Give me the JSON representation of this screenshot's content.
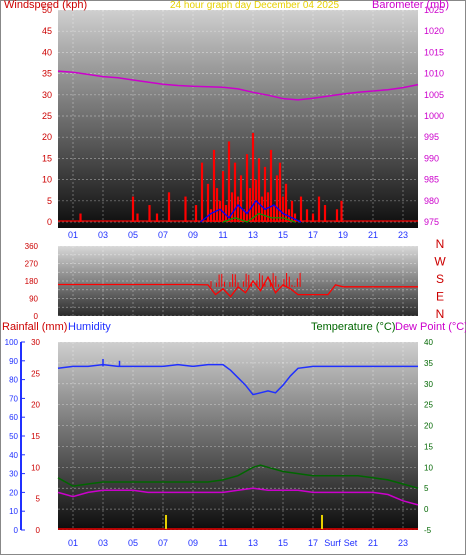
{
  "header": {
    "left_label": "Windspeed (kph)",
    "center_label": "24 hour graph day   December 04 2025",
    "right_label": "Barometer (mb)"
  },
  "colors": {
    "wind": "#ff0000",
    "gust_blue": "#0000ff",
    "gust_green": "#00a000",
    "barometer": "#cc00cc",
    "humidity": "#2030ff",
    "temperature": "#006600",
    "dewpoint": "#cc00cc",
    "rain": "#cc0000",
    "sun": "#e6d000",
    "axis_text": "#cc0000"
  },
  "x_ticks": [
    "01",
    "03",
    "05",
    "07",
    "09",
    "11",
    "13",
    "15",
    "17",
    "19",
    "21",
    "23"
  ],
  "bottom_x_ticks": [
    "01",
    "03",
    "05",
    "07",
    "09",
    "11",
    "13",
    "15",
    "17",
    "Surf",
    "Set",
    "21",
    "23"
  ],
  "chart_data": [
    {
      "type": "bar",
      "title": "24 hour graph day   December 04 2025",
      "ylabel": "Windspeed (kph)",
      "y2label": "Barometer (mb)",
      "ylim": [
        0,
        50
      ],
      "y2lim": [
        975,
        1025
      ],
      "yticks": [
        "0",
        "5",
        "10",
        "15",
        "20",
        "25",
        "30",
        "35",
        "40",
        "45",
        "50"
      ],
      "y2ticks": [
        "975",
        "980",
        "985",
        "990",
        "995",
        "1000",
        "1005",
        "1010",
        "1015",
        "1020",
        "1025"
      ],
      "series": [
        {
          "name": "Windspeed (kph)",
          "type": "bar",
          "x": [
            1.5,
            5.0,
            5.3,
            6.1,
            6.6,
            7.4,
            8.5,
            9.2,
            9.6,
            10.0,
            10.2,
            10.4,
            10.6,
            10.8,
            11.0,
            11.2,
            11.4,
            11.6,
            11.8,
            12.0,
            12.2,
            12.4,
            12.6,
            12.8,
            13.0,
            13.2,
            13.4,
            13.6,
            13.8,
            14.0,
            14.2,
            14.4,
            14.6,
            14.8,
            15.0,
            15.2,
            15.4,
            15.6,
            15.8,
            16.2,
            16.6,
            17.0,
            17.4,
            17.8,
            18.6,
            18.9
          ],
          "values": [
            2,
            6,
            2,
            4,
            2,
            7,
            6,
            4,
            14,
            9,
            3,
            17,
            8,
            5,
            12,
            4,
            19,
            7,
            14,
            6,
            11,
            3,
            16,
            8,
            21,
            10,
            15,
            6,
            13,
            7,
            17,
            4,
            11,
            14,
            6,
            9,
            3,
            5,
            2,
            6,
            3,
            2,
            6,
            4,
            3,
            5
          ]
        },
        {
          "name": "Gust",
          "type": "line",
          "x": [
            9.5,
            10.2,
            10.8,
            11.4,
            12.0,
            12.6,
            13.2,
            13.8,
            14.4,
            15.0,
            15.6,
            16.2
          ],
          "values": [
            0,
            2,
            3,
            1,
            4,
            2,
            5,
            3,
            4,
            2,
            1,
            0
          ]
        },
        {
          "name": "Direction",
          "type": "line",
          "x": [
            11.0,
            11.8,
            12.6,
            13.4,
            14.2,
            15.0,
            15.8
          ],
          "values": [
            0,
            1,
            0,
            2,
            1,
            1,
            0
          ]
        },
        {
          "name": "Barometer (mb)",
          "type": "line",
          "axis": "y2",
          "x": [
            0,
            1,
            2,
            3,
            4,
            5,
            6,
            7,
            8,
            9,
            10,
            11,
            12,
            13,
            14,
            15,
            16,
            17,
            18,
            19,
            20,
            21,
            22,
            23,
            24
          ],
          "values": [
            1010.6,
            1010.3,
            1009.8,
            1009.3,
            1009.0,
            1008.5,
            1008.0,
            1007.5,
            1007.2,
            1007.0,
            1006.9,
            1006.8,
            1006.4,
            1005.6,
            1004.9,
            1004.1,
            1003.8,
            1004.2,
            1004.7,
            1005.2,
            1005.6,
            1005.9,
            1006.2,
            1006.7,
            1007.4
          ]
        }
      ]
    },
    {
      "type": "line",
      "ylim": [
        0,
        360
      ],
      "yticks": [
        "0",
        "90",
        "180",
        "270",
        "360"
      ],
      "y2ticks": [
        "N",
        "W",
        "S",
        "E",
        "N"
      ],
      "series": [
        {
          "name": "Wind direction",
          "x": [
            0,
            1,
            2,
            3,
            4,
            5,
            6,
            7,
            8,
            9,
            10,
            10.5,
            11,
            11.5,
            12,
            12.5,
            13,
            13.5,
            14,
            14.5,
            15,
            15.5,
            16,
            17,
            18,
            18.5,
            19,
            20,
            21,
            22,
            23,
            24
          ],
          "values": [
            162,
            162,
            162,
            162,
            162,
            162,
            162,
            162,
            162,
            162,
            160,
            110,
            140,
            100,
            150,
            120,
            180,
            130,
            200,
            120,
            160,
            140,
            110,
            110,
            110,
            160,
            150,
            150,
            150,
            150,
            150,
            150
          ]
        }
      ]
    },
    {
      "type": "line",
      "ylabel": "Rainfall (mm)",
      "y2label": "Temperature (°C)",
      "y3label": "Dew Point (°C)",
      "humidity_label": "Humidity",
      "ylim": [
        0,
        100
      ],
      "rain_ylim": [
        0,
        30
      ],
      "temp_ylim": [
        -5,
        40
      ],
      "humidity_ticks": [
        "0",
        "10",
        "20",
        "30",
        "40",
        "50",
        "60",
        "70",
        "80",
        "90",
        "100"
      ],
      "rain_ticks": [
        "0",
        "5",
        "10",
        "15",
        "20",
        "25",
        "30"
      ],
      "temp_ticks": [
        "-5",
        "0",
        "5",
        "10",
        "15",
        "20",
        "25",
        "30",
        "35",
        "40"
      ],
      "series": [
        {
          "name": "Humidity",
          "axis": "humidity",
          "x": [
            0,
            1,
            2,
            3,
            4,
            5,
            6,
            7,
            8,
            9,
            10,
            11,
            11.5,
            12,
            12.5,
            13,
            13.5,
            14,
            14.5,
            15,
            15.5,
            16,
            17,
            18,
            19,
            20,
            21,
            22,
            23,
            24
          ],
          "values": [
            86,
            87,
            87,
            88,
            87,
            87,
            87,
            87,
            88,
            87,
            88,
            88,
            85,
            81,
            77,
            72,
            73,
            74,
            73,
            77,
            82,
            86,
            87,
            87,
            87,
            87,
            87,
            87,
            87,
            87
          ]
        },
        {
          "name": "Temperature (°C)",
          "axis": "temp",
          "x": [
            0,
            1,
            2,
            3,
            4,
            5,
            6,
            7,
            8,
            9,
            10,
            11,
            12,
            12.5,
            13,
            13.5,
            14,
            15,
            16,
            17,
            18,
            19,
            20,
            21,
            22,
            23,
            24
          ],
          "values": [
            7.5,
            5.5,
            6,
            6.5,
            6.5,
            6.5,
            6.5,
            6.5,
            6.5,
            6.5,
            6.5,
            7,
            8,
            9,
            10,
            10.5,
            10,
            9,
            8.5,
            8,
            8,
            8,
            8,
            7.5,
            7,
            6,
            5
          ]
        },
        {
          "name": "Dew Point (°C)",
          "axis": "temp",
          "x": [
            0,
            1,
            2,
            3,
            4,
            5,
            6,
            7,
            8,
            9,
            10,
            11,
            12,
            13,
            14,
            15,
            16,
            17,
            18,
            19,
            20,
            21,
            22,
            23,
            24
          ],
          "values": [
            4,
            3,
            4,
            4.5,
            4.5,
            4.5,
            4,
            4,
            4,
            4,
            4,
            4,
            4.5,
            5,
            4.5,
            4.5,
            4.5,
            4,
            4,
            4,
            4,
            4,
            3.5,
            2,
            1
          ]
        },
        {
          "name": "Sun",
          "axis": "humidity",
          "x": [
            7.2,
            17.6
          ],
          "values": [
            8,
            8
          ]
        },
        {
          "name": "Rainfall (mm)",
          "axis": "rain",
          "x": [
            0,
            24
          ],
          "values": [
            0,
            0
          ]
        }
      ]
    }
  ]
}
